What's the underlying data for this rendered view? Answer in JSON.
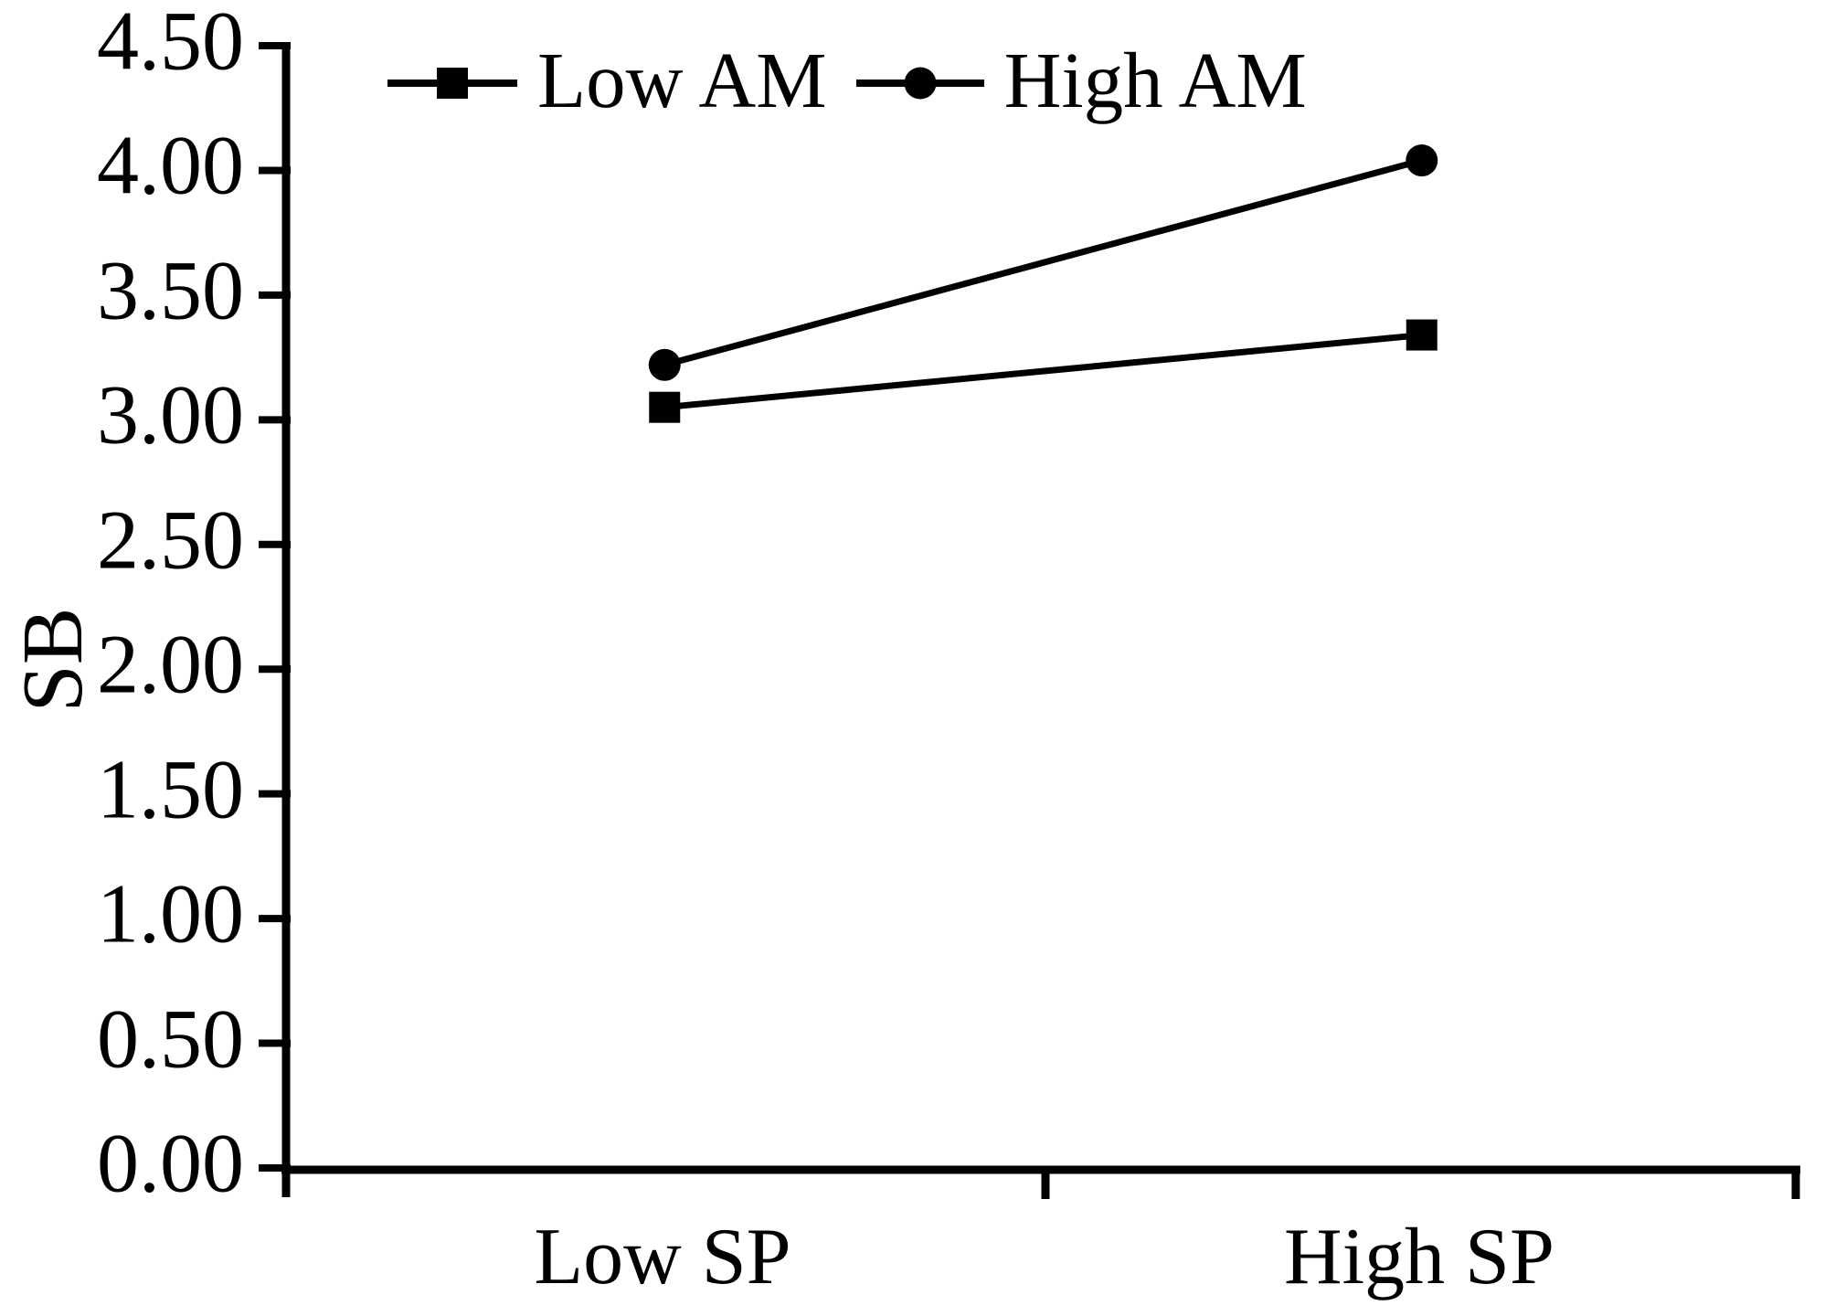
{
  "chart_data": {
    "type": "line",
    "title": "",
    "xlabel": "",
    "ylabel": "SB",
    "categories": [
      "Low SP",
      "High SP"
    ],
    "series": [
      {
        "name": "Low AM",
        "marker": "square",
        "values": [
          3.05,
          3.34
        ]
      },
      {
        "name": "High AM",
        "marker": "circle",
        "values": [
          3.22,
          4.04
        ]
      }
    ],
    "ylim": [
      0.0,
      4.5
    ],
    "ytick_step": 0.5,
    "ytick_labels": [
      "0.00",
      "0.50",
      "1.00",
      "1.50",
      "2.00",
      "2.50",
      "3.00",
      "3.50",
      "4.00",
      "4.50"
    ],
    "grid": false,
    "legend_position": "top-inside",
    "colors": {
      "series": "#000000",
      "axis": "#000000",
      "background": "#ffffff"
    }
  }
}
